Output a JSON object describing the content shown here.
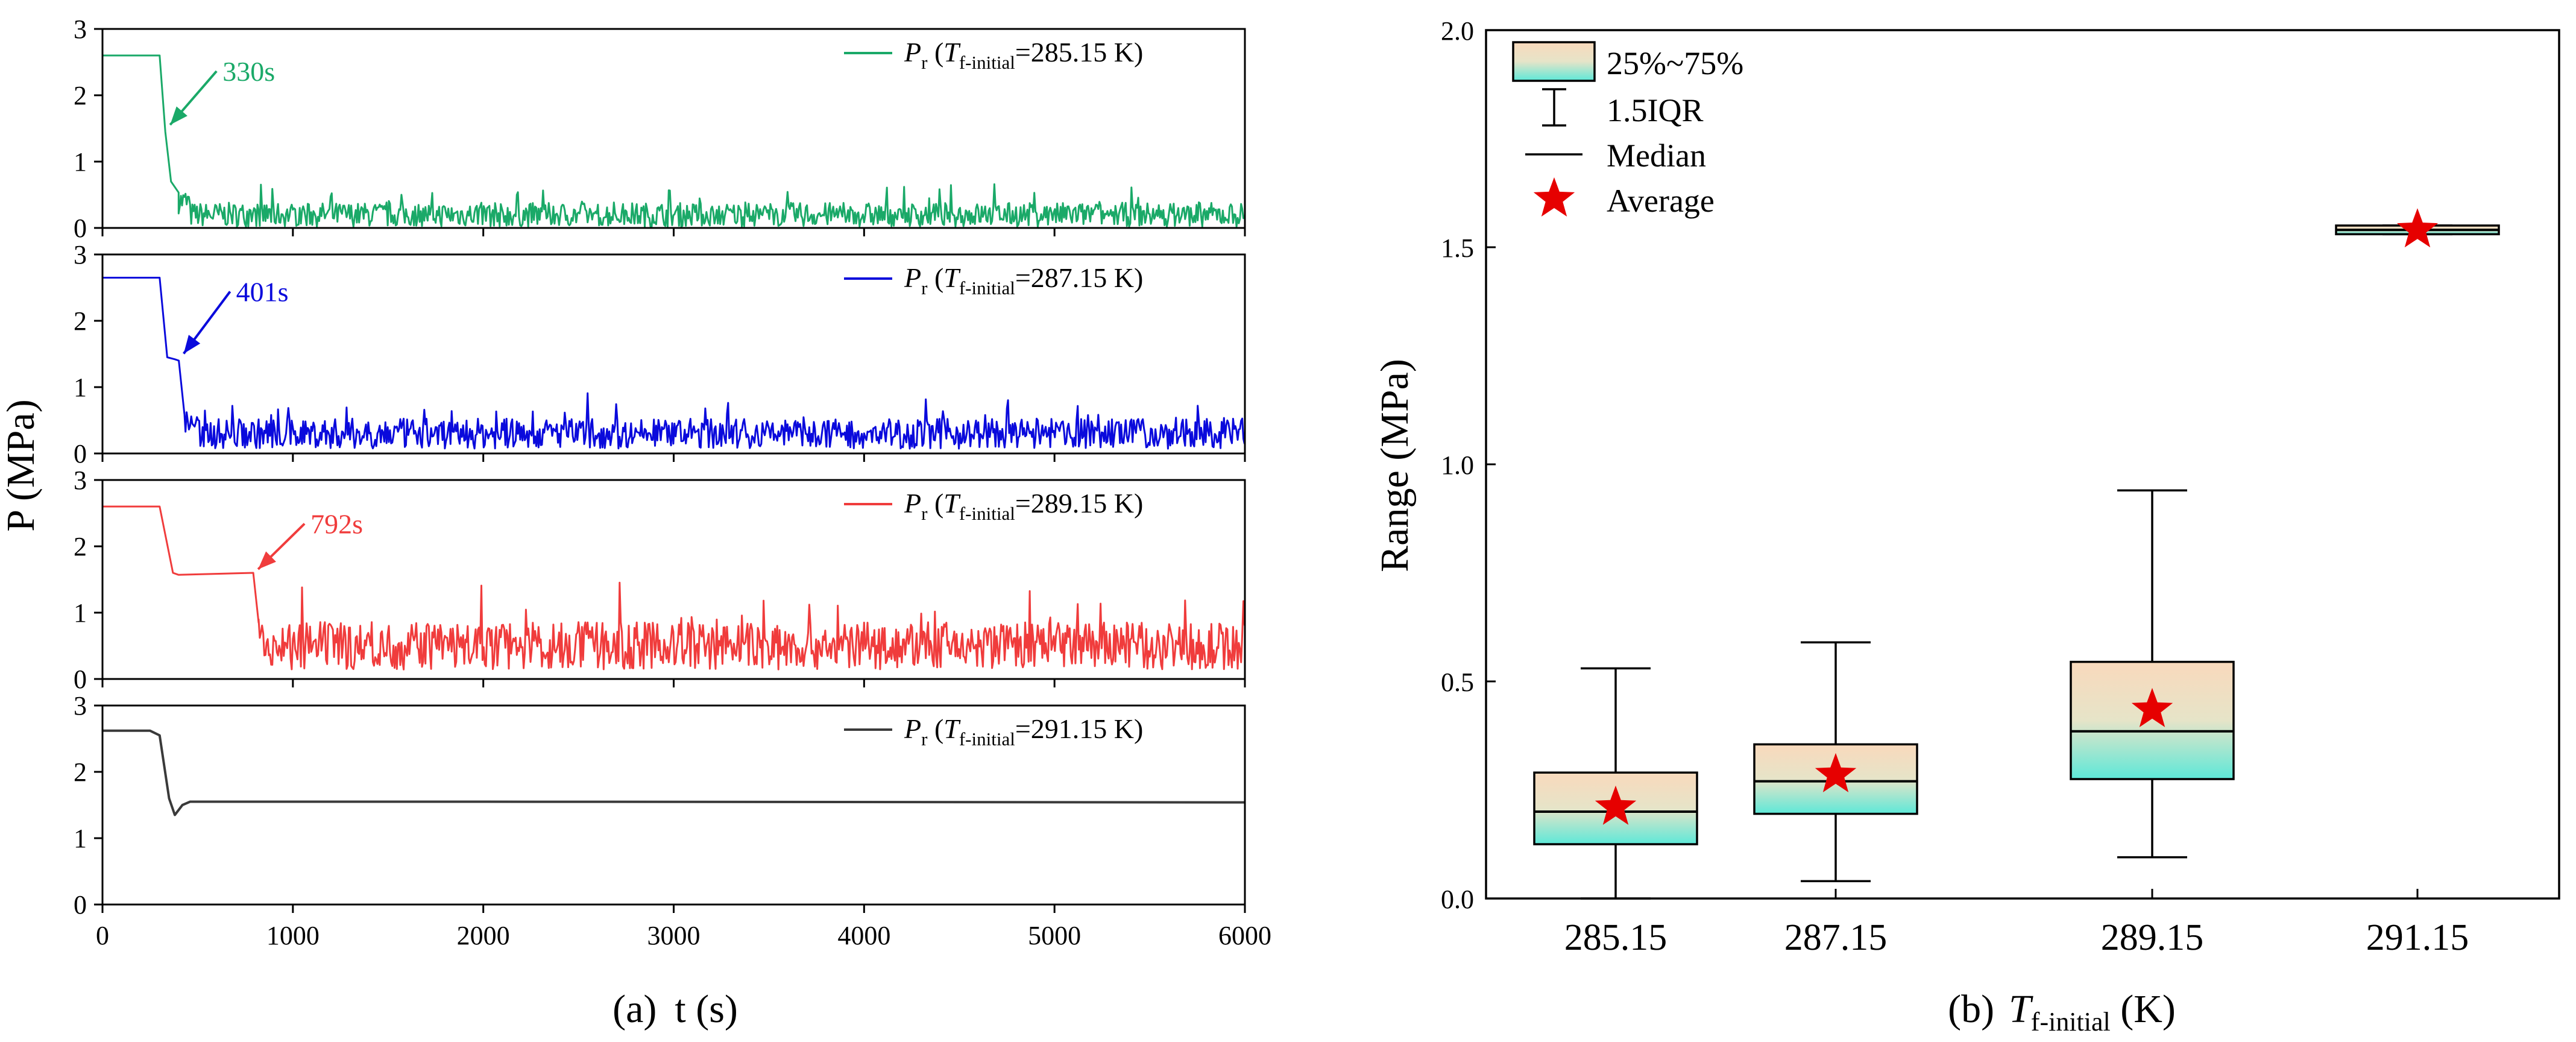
{
  "chart_data": [
    {
      "type": "line",
      "panel": "a",
      "caption": {
        "letter": "(a)",
        "text": "t (s)"
      },
      "xlabel": "t (s)",
      "ylabel": "P (MPa)",
      "xlim": [
        0,
        6000
      ],
      "xticks": [
        0,
        1000,
        2000,
        3000,
        4000,
        5000,
        6000
      ],
      "ylim": [
        0,
        3
      ],
      "yticks": [
        0,
        1,
        2,
        3
      ],
      "subplots": [
        {
          "color": "#1aa968",
          "legend": {
            "sym": "P",
            "sub": "r",
            "open": " (",
            "it": "T",
            "itsub": "f-initial",
            "rest": "=285.15 K)"
          },
          "annotation": "330s",
          "event_time": 330,
          "initial_pressure": 2.6,
          "profile": [
            [
              0,
              2.6
            ],
            [
              300,
              2.6
            ],
            [
              330,
              1.45
            ],
            [
              360,
              0.7
            ],
            [
              420,
              0.45
            ],
            [
              6000,
              0.2
            ]
          ],
          "noise": {
            "start": 400,
            "base": 0.2,
            "amp": 0.28,
            "floor": 0.02
          }
        },
        {
          "color": "#0a0adc",
          "legend": {
            "sym": "P",
            "sub": "r",
            "open": " (",
            "it": "T",
            "itsub": "f-initial",
            "rest": "=287.15 K)"
          },
          "annotation": "401s",
          "event_time": 401,
          "initial_pressure": 2.65,
          "profile": [
            [
              0,
              2.65
            ],
            [
              300,
              2.65
            ],
            [
              340,
              1.45
            ],
            [
              380,
              1.42
            ],
            [
              401,
              1.4
            ],
            [
              430,
              0.6
            ],
            [
              6000,
              0.3
            ]
          ],
          "noise": {
            "start": 430,
            "base": 0.3,
            "amp": 0.35,
            "floor": 0.05
          }
        },
        {
          "color": "#f03c3c",
          "legend": {
            "sym": "P",
            "sub": "r",
            "open": " (",
            "it": "T",
            "itsub": "f-initial",
            "rest": "=289.15 K)"
          },
          "annotation": "792s",
          "event_time": 792,
          "initial_pressure": 2.6,
          "profile": [
            [
              0,
              2.6
            ],
            [
              300,
              2.6
            ],
            [
              370,
              1.6
            ],
            [
              400,
              1.57
            ],
            [
              792,
              1.6
            ],
            [
              820,
              0.85
            ],
            [
              6000,
              0.5
            ]
          ],
          "noise": {
            "start": 820,
            "base": 0.5,
            "amp": 0.55,
            "floor": 0.05
          }
        },
        {
          "color": "#3a3a3a",
          "legend": {
            "sym": "P",
            "sub": "r",
            "open": " (",
            "it": "T",
            "itsub": "f-initial",
            "rest": "=291.15 K)"
          },
          "annotation": "",
          "initial_pressure": 2.62,
          "profile": [
            [
              0,
              2.62
            ],
            [
              250,
              2.62
            ],
            [
              300,
              2.55
            ],
            [
              350,
              1.6
            ],
            [
              380,
              1.35
            ],
            [
              420,
              1.5
            ],
            [
              460,
              1.55
            ],
            [
              2000,
              1.55
            ],
            [
              6000,
              1.54
            ]
          ],
          "noise": null
        }
      ]
    },
    {
      "type": "box",
      "panel": "b",
      "caption": {
        "letter": "(b)",
        "it": "T",
        "itsub": "f-initial",
        "rest": " (K)"
      },
      "xlabel": "T f-initial (K)",
      "ylabel": "Range (MPa)",
      "ylim": [
        0,
        2.0
      ],
      "yticks": [
        "0.0",
        "0.5",
        "1.0",
        "1.5",
        "2.0"
      ],
      "categories": [
        "285.15",
        "287.15",
        "289.15",
        "291.15"
      ],
      "boxes": [
        {
          "whisker_low": 0.0,
          "q1": 0.125,
          "median": 0.2,
          "q3": 0.29,
          "whisker_high": 0.53,
          "mean": 0.21
        },
        {
          "whisker_low": 0.04,
          "q1": 0.195,
          "median": 0.27,
          "q3": 0.355,
          "whisker_high": 0.59,
          "mean": 0.285
        },
        {
          "whisker_low": 0.095,
          "q1": 0.275,
          "median": 0.385,
          "q3": 0.545,
          "whisker_high": 0.94,
          "mean": 0.435
        },
        {
          "whisker_low": 1.53,
          "q1": 1.53,
          "median": 1.54,
          "q3": 1.55,
          "whisker_high": 1.55,
          "mean": 1.54
        }
      ],
      "legend": [
        "25%~75%",
        "1.5IQR",
        "Median",
        "Average"
      ],
      "box_gradient": {
        "top": "#f9d9bc",
        "bottom": "#5de8d8"
      },
      "mean_color": "#e60000"
    }
  ]
}
